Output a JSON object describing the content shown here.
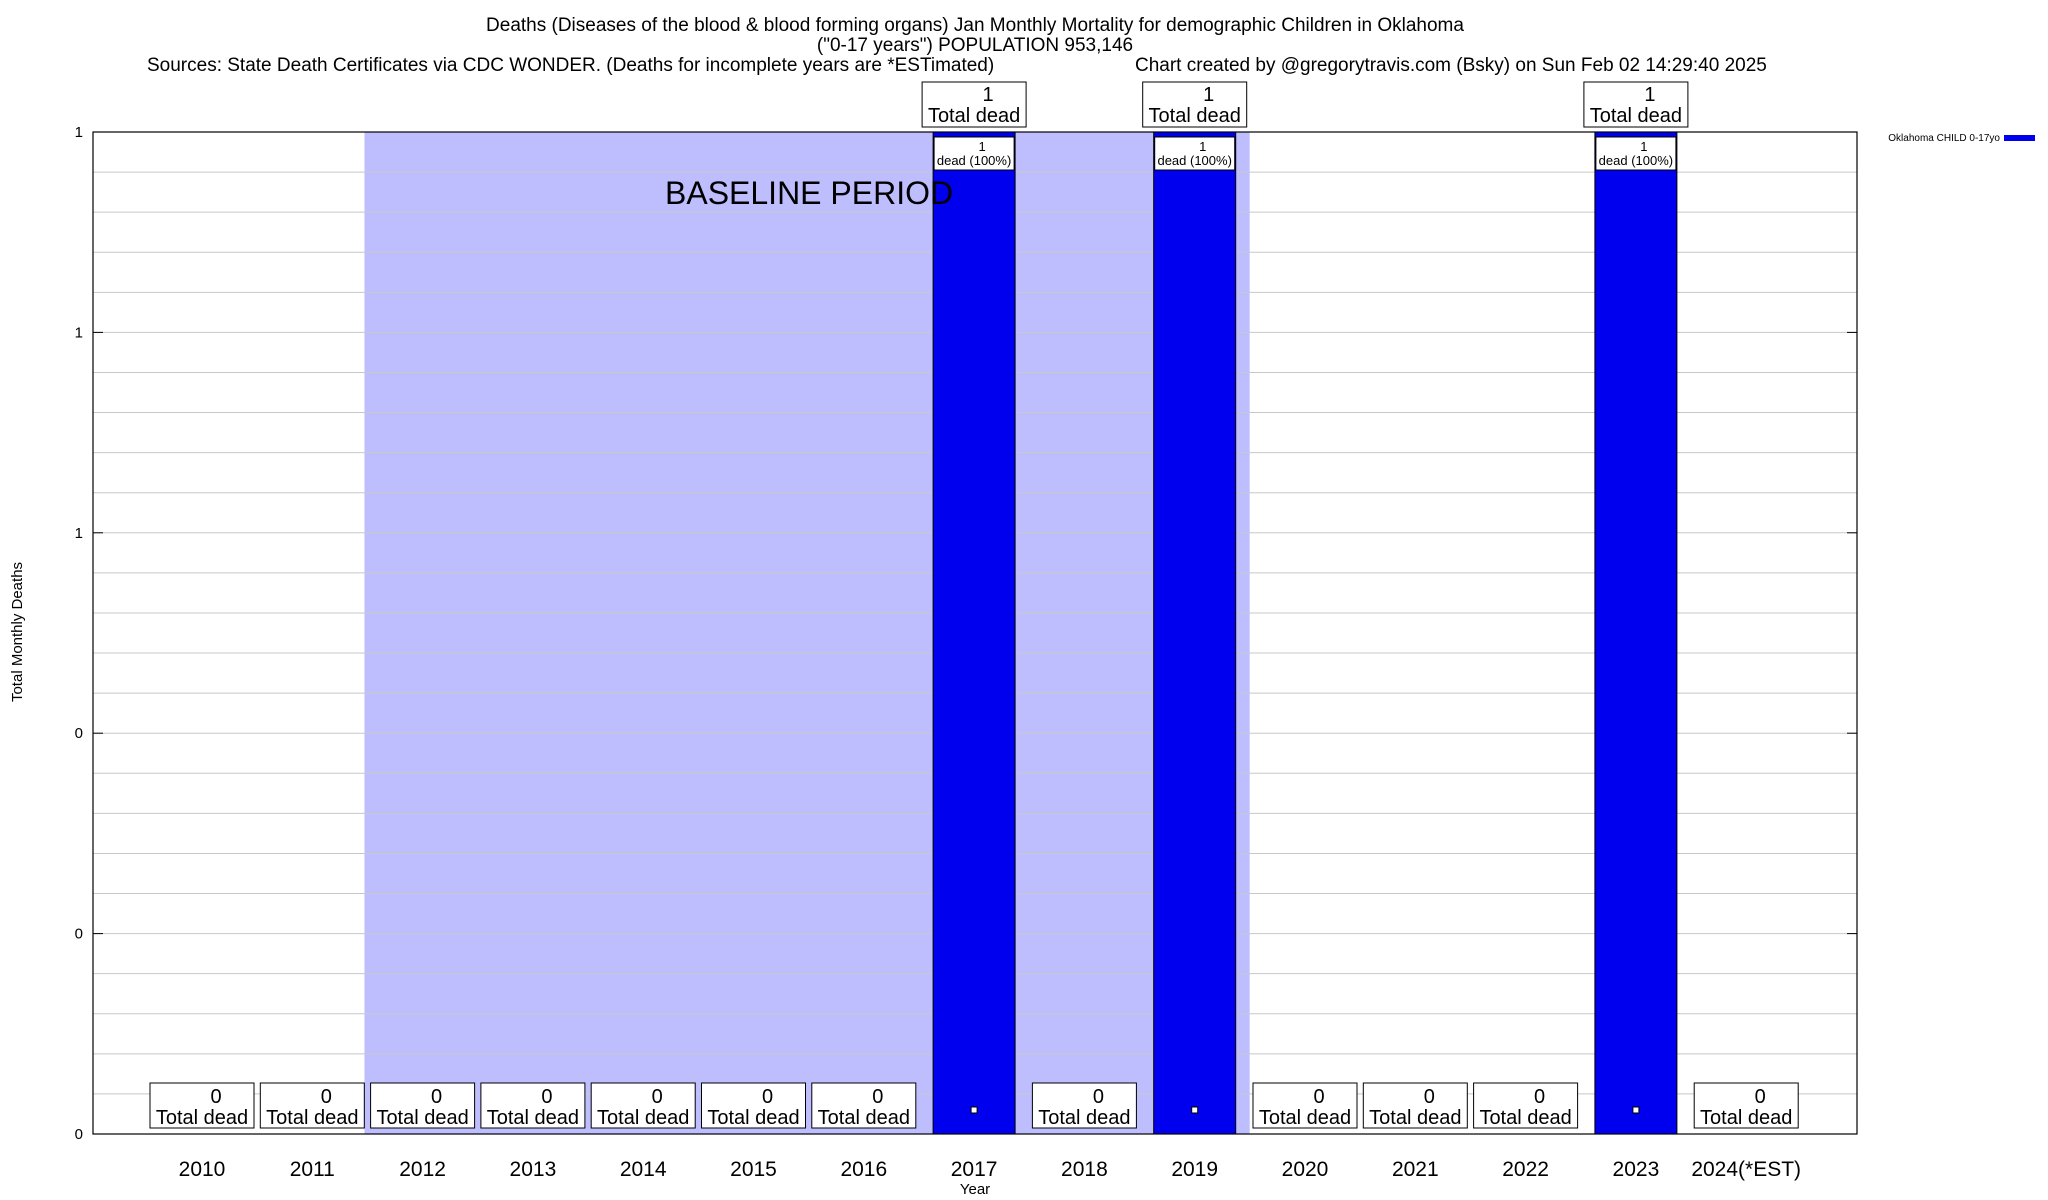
{
  "chart_data": {
    "type": "bar",
    "title_lines": [
      "Deaths (Diseases of the blood & blood forming organs) Jan Monthly Mortality for demographic Children in Oklahoma",
      "(\"0-17 years\") POPULATION 953,146",
      "Sources: State Death Certificates via CDC WONDER. (Deaths for incomplete years are *ESTimated)"
    ],
    "credit": "Chart created by @gregorytravis.com (Bsky) on Sun Feb 02 14:29:40 2025",
    "xlabel": "Year",
    "ylabel": "Total Monthly Deaths",
    "categories": [
      "2010",
      "2011",
      "2012",
      "2013",
      "2014",
      "2015",
      "2016",
      "2017",
      "2018",
      "2019",
      "2020",
      "2021",
      "2022",
      "2023",
      "2024(*EST)"
    ],
    "series": [
      {
        "name": "Oklahoma CHILD 0-17yo",
        "color": "#0000ee",
        "values": [
          0,
          0,
          0,
          0,
          0,
          0,
          0,
          1,
          0,
          1,
          0,
          0,
          0,
          1,
          0
        ]
      }
    ],
    "ylim": [
      0,
      1
    ],
    "y_ticks": [
      {
        "value": 0,
        "label": "0"
      },
      {
        "value": 0.2,
        "label": "0"
      },
      {
        "value": 0.4,
        "label": "0"
      },
      {
        "value": 0.6,
        "label": "1"
      },
      {
        "value": 0.8,
        "label": "1"
      },
      {
        "value": 1,
        "label": "1"
      }
    ],
    "total_label_text": "Total dead",
    "bar_label_suffix": "dead (100%)",
    "baseline": {
      "label": "BASELINE PERIOD",
      "start": "2012",
      "end": "2019",
      "color": "#bebeff"
    },
    "grid": true,
    "legend_position": "top-right"
  }
}
